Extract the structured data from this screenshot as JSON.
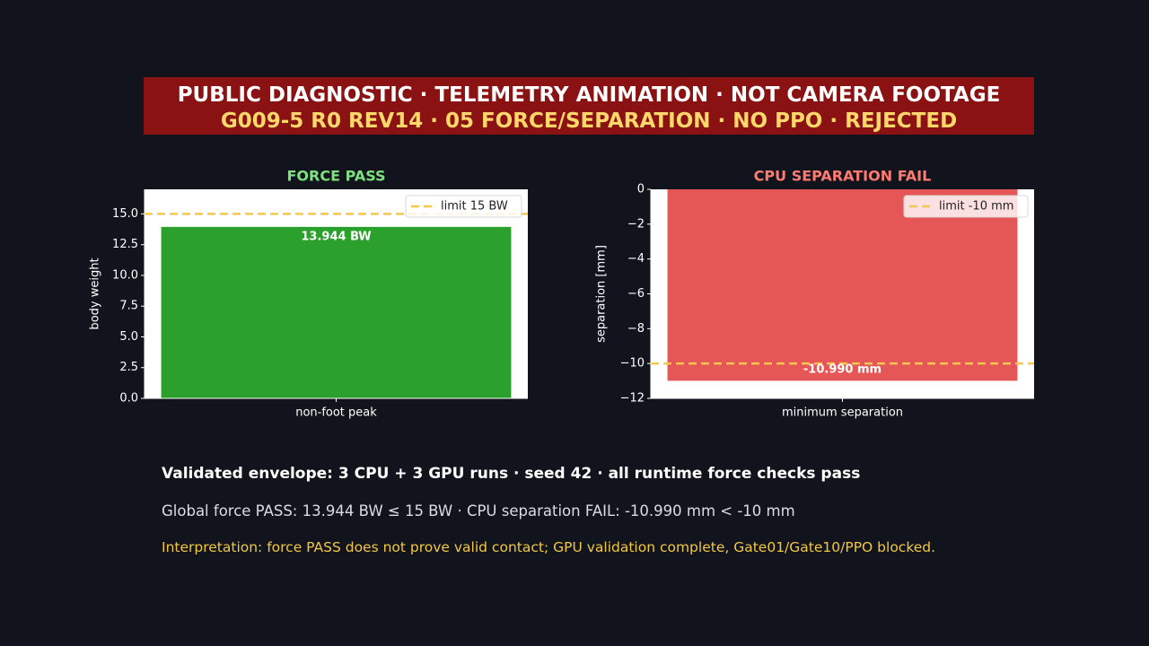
{
  "banner": {
    "line1": "PUBLIC DIAGNOSTIC · TELEMETRY ANIMATION · NOT CAMERA FOOTAGE",
    "line2": "G009-5 R0 REV14 · 05 FORCE/SEPARATION · NO PPO · REJECTED"
  },
  "chart_data": [
    {
      "type": "bar",
      "title": "FORCE PASS",
      "title_color": "#7ee07e",
      "categories": [
        "non-foot peak"
      ],
      "values": [
        13.944
      ],
      "bar_color": "#2ca02c",
      "data_label": "13.944 BW",
      "xlabel": "",
      "ylabel": "body weight",
      "ylim": [
        0,
        17
      ],
      "yticks": [
        "0.0",
        "2.5",
        "5.0",
        "7.5",
        "10.0",
        "12.5",
        "15.0"
      ],
      "yticks_values": [
        0,
        2.5,
        5,
        7.5,
        10,
        12.5,
        15
      ],
      "limit": {
        "value": 15,
        "label": "limit 15 BW",
        "color": "#f5c84c"
      },
      "legend_position": "top-right",
      "grid": false
    },
    {
      "type": "bar",
      "title": "CPU SEPARATION FAIL",
      "title_color": "#ff7b72",
      "categories": [
        "minimum separation"
      ],
      "values": [
        -10.99
      ],
      "bar_color": "#e45756",
      "data_label": "-10.990 mm",
      "xlabel": "",
      "ylabel": "separation [mm]",
      "ylim": [
        -12,
        0
      ],
      "yticks": [
        "0",
        "−2",
        "−4",
        "−6",
        "−8",
        "−10",
        "−12"
      ],
      "yticks_values": [
        0,
        -2,
        -4,
        -6,
        -8,
        -10,
        -12
      ],
      "limit": {
        "value": -10,
        "label": "limit -10 mm",
        "color": "#f5c84c"
      },
      "legend_position": "top-right",
      "grid": false
    }
  ],
  "footer": {
    "line1": "Validated envelope: 3 CPU + 3 GPU runs · seed 42 · all runtime force checks pass",
    "line2": "Global force PASS: 13.944 BW ≤ 15 BW · CPU separation FAIL: -10.990 mm < -10 mm",
    "line3": "Interpretation: force PASS does not prove valid contact; GPU validation complete, Gate01/Gate10/PPO blocked."
  }
}
